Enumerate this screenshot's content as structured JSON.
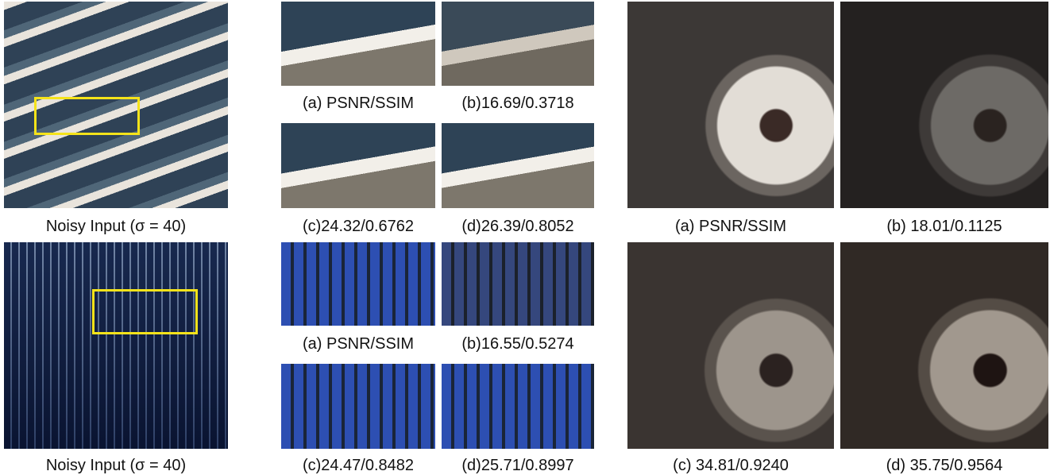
{
  "figure": {
    "left_rows": [
      {
        "input_caption": "Noisy Input (σ = 40)",
        "crop_captions": [
          "(a) PSNR/SSIM",
          "(b)16.69/0.3718",
          "(c)24.32/0.6762",
          "(d)26.39/0.8052"
        ]
      },
      {
        "input_caption": "Noisy Input (σ = 40)",
        "crop_captions": [
          "(a) PSNR/SSIM",
          "(b)16.55/0.5274",
          "(c)24.47/0.8482",
          "(d)25.71/0.8997"
        ]
      }
    ],
    "right_captions": [
      "(a) PSNR/SSIM",
      "(b) 18.01/0.1125",
      "(c) 34.81/0.9240",
      "(d) 35.75/0.9564"
    ]
  }
}
